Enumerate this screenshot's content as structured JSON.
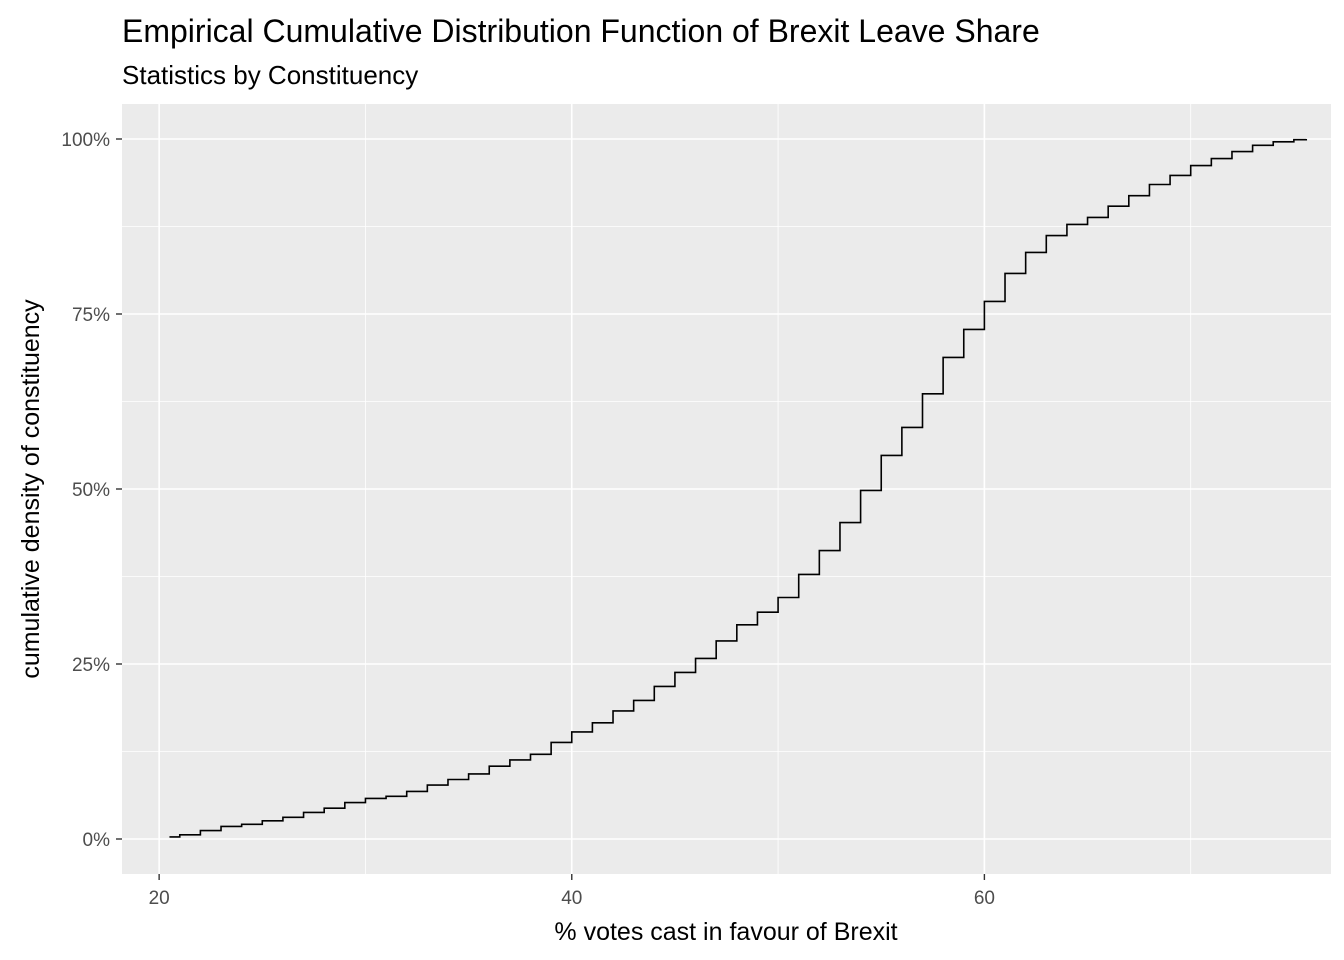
{
  "chart_data": {
    "type": "line",
    "step": true,
    "title": "Empirical Cumulative Distribution Function of Brexit Leave Share",
    "subtitle": "Statistics by Constituency",
    "xlabel": "% votes cast in favour of Brexit",
    "ylabel": "cumulative density of constituency",
    "xlim": [
      18.2,
      76.8
    ],
    "ylim": [
      -0.05,
      1.05
    ],
    "x_ticks": [
      20,
      40,
      60
    ],
    "x_tick_labels": [
      "20",
      "40",
      "60"
    ],
    "y_ticks": [
      0,
      0.25,
      0.5,
      0.75,
      1.0
    ],
    "y_tick_labels": [
      "0%",
      "25%",
      "50%",
      "75%",
      "100%"
    ],
    "grid": true,
    "colors": {
      "panel": "#ebebeb",
      "grid": "#ffffff",
      "line": "#000000"
    },
    "series": [
      {
        "x": [
          20.5,
          21.0,
          22.0,
          23.0,
          24.0,
          25.0,
          26.0,
          27.0,
          28.0,
          29.0,
          30.0,
          31.0,
          32.0,
          33.0,
          34.0,
          35.0,
          36.0,
          37.0,
          38.0,
          39.0,
          40.0,
          41.0,
          42.0,
          43.0,
          44.0,
          45.0,
          46.0,
          47.0,
          48.0,
          49.0,
          50.0,
          51.0,
          52.0,
          53.0,
          54.0,
          55.0,
          56.0,
          57.0,
          58.0,
          59.0,
          60.0,
          61.0,
          62.0,
          63.0,
          64.0,
          65.0,
          66.0,
          67.0,
          68.0,
          69.0,
          70.0,
          71.0,
          72.0,
          73.0,
          74.0,
          75.0,
          75.6
        ],
        "y": [
          0.003,
          0.006,
          0.012,
          0.018,
          0.021,
          0.026,
          0.031,
          0.038,
          0.044,
          0.052,
          0.058,
          0.061,
          0.068,
          0.077,
          0.085,
          0.093,
          0.104,
          0.113,
          0.121,
          0.138,
          0.153,
          0.166,
          0.183,
          0.198,
          0.218,
          0.238,
          0.258,
          0.283,
          0.306,
          0.324,
          0.345,
          0.378,
          0.412,
          0.452,
          0.498,
          0.548,
          0.588,
          0.636,
          0.688,
          0.728,
          0.768,
          0.808,
          0.838,
          0.862,
          0.878,
          0.888,
          0.904,
          0.919,
          0.935,
          0.948,
          0.962,
          0.972,
          0.982,
          0.991,
          0.996,
          0.999,
          1.0
        ]
      }
    ]
  }
}
